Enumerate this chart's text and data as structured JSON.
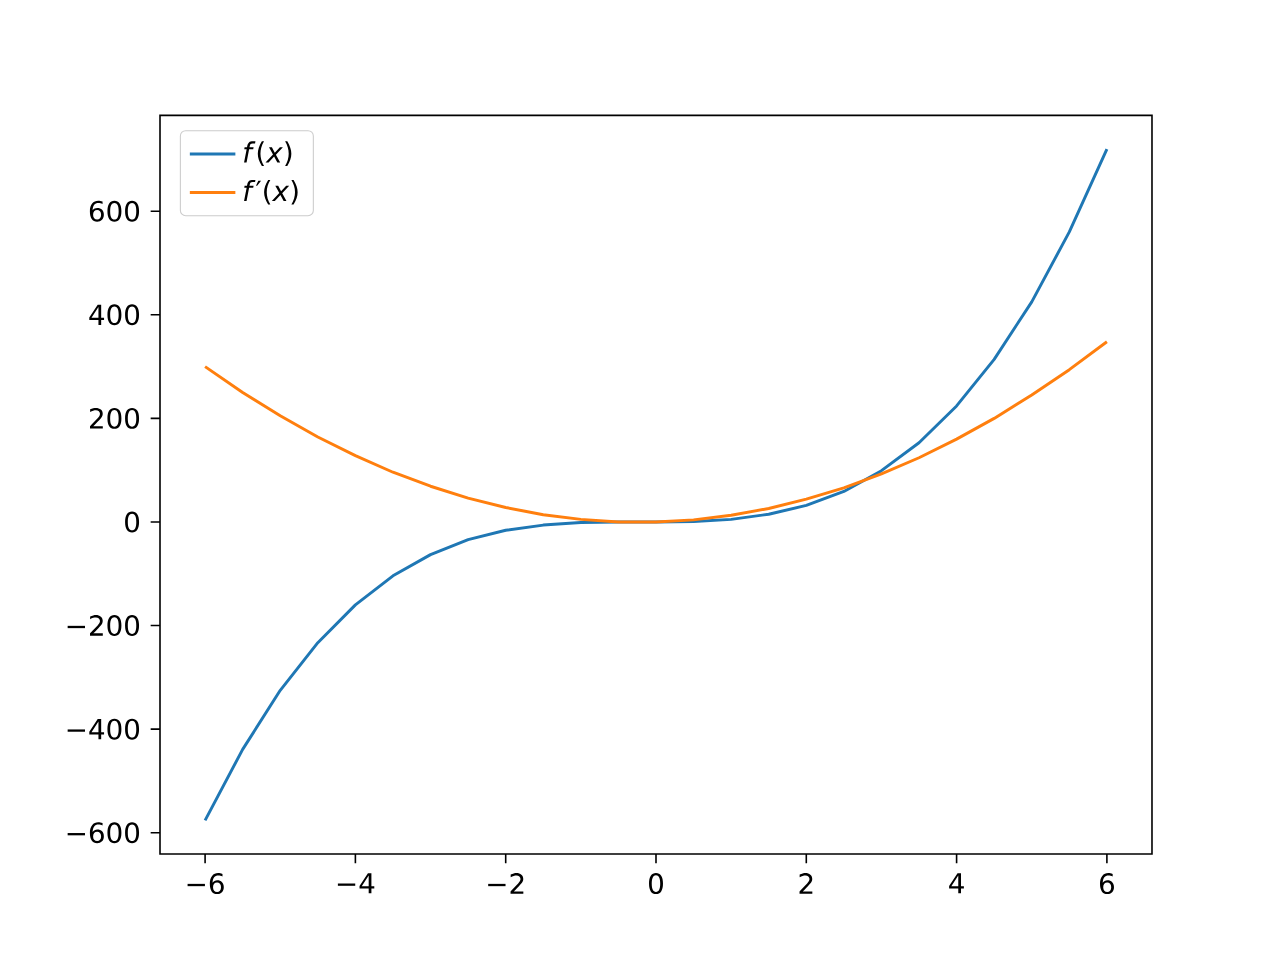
{
  "chart_data": {
    "type": "line",
    "x": [
      -6,
      -5.5,
      -5,
      -4.5,
      -4,
      -3.5,
      -3,
      -2.5,
      -2,
      -1.5,
      -1,
      -0.5,
      0,
      0.5,
      1,
      1.5,
      2,
      2.5,
      3,
      3.5,
      4,
      4.5,
      5,
      5.5,
      6
    ],
    "series": [
      {
        "name": "*f*(*x*)",
        "color": "#1f77b4",
        "values": [
          -576,
          -439,
          -325,
          -233,
          -160,
          -104,
          -63,
          -34,
          -16,
          -6,
          -1,
          0,
          0,
          1,
          5,
          15,
          32,
          59,
          99,
          153,
          224,
          314,
          425,
          560,
          720
        ]
      },
      {
        "name": "*f*′(*x*)",
        "color": "#ff7f0e",
        "values": [
          300,
          250,
          205,
          164,
          128,
          96,
          69,
          46,
          28,
          14,
          5,
          0,
          0,
          4,
          13,
          26,
          44,
          66,
          93,
          124,
          160,
          200,
          245,
          294,
          348
        ]
      }
    ],
    "xlim": [
      -6.6,
      6.6
    ],
    "ylim": [
      -641,
      785
    ],
    "xticks": [
      {
        "value": -6,
        "label": "−6"
      },
      {
        "value": -4,
        "label": "−4"
      },
      {
        "value": -2,
        "label": "−2"
      },
      0,
      2,
      4,
      6
    ],
    "yticks": [
      {
        "value": -600,
        "label": "−600"
      },
      {
        "value": -400,
        "label": "−400"
      },
      {
        "value": -200,
        "label": "−200"
      },
      0,
      200,
      400,
      600
    ],
    "legend": "top left",
    "grid": false,
    "marker": "none",
    "line_style": "solid"
  }
}
